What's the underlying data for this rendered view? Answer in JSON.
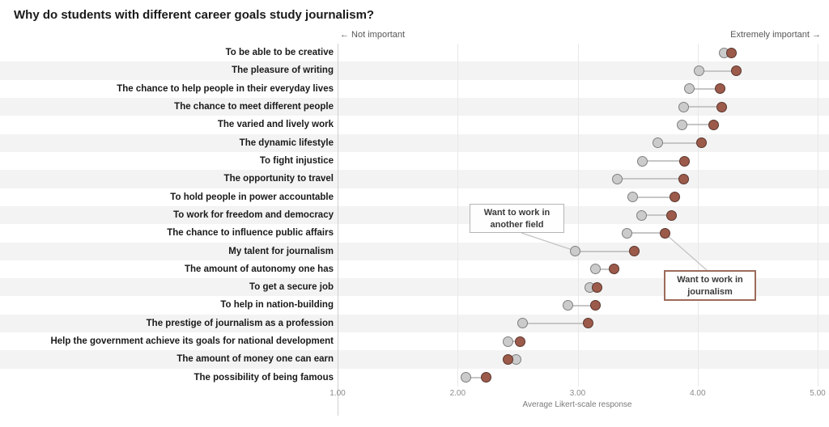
{
  "title": "Why do students with different career goals study journalism?",
  "header": {
    "not_important": "← Not important",
    "extremely_important": "Extremely important →"
  },
  "axis": {
    "caption": "Average Likert-scale response",
    "ticks": [
      "1.00",
      "2.00",
      "3.00",
      "4.00",
      "5.00"
    ],
    "min": 1,
    "max": 5
  },
  "annotations": {
    "another_field": {
      "line1": "Want to work in",
      "line2": "another field"
    },
    "journalism": {
      "line1": "Want to work in",
      "line2": "journalism"
    }
  },
  "colors": {
    "journalism_dot": "#9c5a4a",
    "journalism_stroke": "#59362e",
    "another_field_dot": "#cbcbcb",
    "another_field_stroke": "#7f7f7f",
    "connector": "#c6c6c6",
    "band": "#f3f3f3",
    "journalism_box_border": "#9c6b5a"
  },
  "chart_data": {
    "type": "scatter",
    "subtype": "dumbbell-dot-plot",
    "title": "Why do students with different career goals study journalism?",
    "xlabel": "Average Likert-scale response",
    "xlim": [
      1,
      5
    ],
    "x_ticks": [
      1.0,
      2.0,
      3.0,
      4.0,
      5.0
    ],
    "grid": true,
    "legend_position": "inline-annotations",
    "categories": [
      "To be able to be creative",
      "The pleasure of writing",
      "The chance to help people in their everyday lives",
      "The chance to meet different people",
      "The varied and lively work",
      "The dynamic lifestyle",
      "To fight injustice",
      "The opportunity to travel",
      "To hold people in power accountable",
      "To work for freedom and democracy",
      "The chance to influence public affairs",
      "My talent for journalism",
      "The amount of autonomy one has",
      "To get a secure job",
      "To help in nation-building",
      "The prestige of journalism as a profession",
      "Help the government achieve its goals for national development",
      "The amount of money one can earn",
      "The possibility of being famous"
    ],
    "series": [
      {
        "name": "Want to work in another field",
        "color": "#cbcbcb",
        "values": [
          4.22,
          4.01,
          3.93,
          3.88,
          3.87,
          3.67,
          3.54,
          3.33,
          3.46,
          3.53,
          3.41,
          2.98,
          3.15,
          3.1,
          2.92,
          2.54,
          2.42,
          2.49,
          2.07
        ]
      },
      {
        "name": "Want to work in journalism",
        "color": "#9c5a4a",
        "values": [
          4.28,
          4.32,
          4.19,
          4.2,
          4.13,
          4.03,
          3.89,
          3.88,
          3.81,
          3.78,
          3.73,
          3.47,
          3.3,
          3.16,
          3.15,
          3.09,
          2.52,
          2.42,
          2.24
        ]
      }
    ]
  }
}
